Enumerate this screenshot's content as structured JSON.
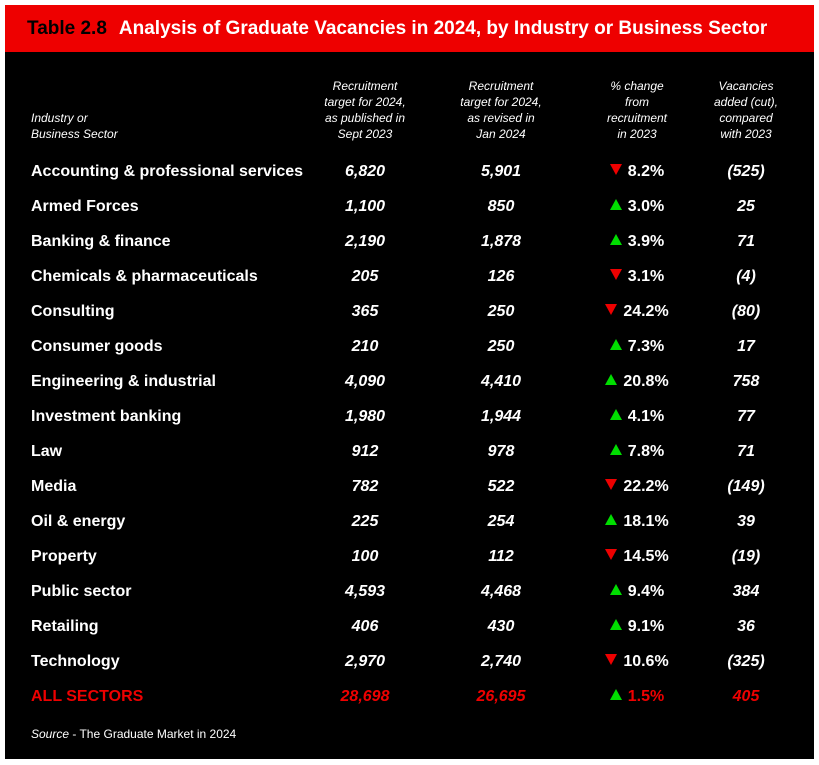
{
  "title": {
    "number": "Table 2.8",
    "text": "Analysis of Graduate Vacancies in 2024, by Industry or Business Sector"
  },
  "headers": {
    "sector": "Industry or\nBusiness Sector",
    "published": "Recruitment\ntarget for 2024,\nas published in\nSept 2023",
    "revised": "Recruitment\ntarget for 2024,\nas revised in\nJan 2024",
    "change": "% change\nfrom\nrecruitment\nin 2023",
    "added": "Vacancies\nadded (cut),\ncompared\nwith 2023"
  },
  "rows": [
    {
      "sector": "Accounting & professional services",
      "published": "6,820",
      "revised": "5,901",
      "direction": "down",
      "change": "8.2%",
      "added": "(525)"
    },
    {
      "sector": "Armed Forces",
      "published": "1,100",
      "revised": "850",
      "direction": "up",
      "change": "3.0%",
      "added": "25"
    },
    {
      "sector": "Banking & finance",
      "published": "2,190",
      "revised": "1,878",
      "direction": "up",
      "change": "3.9%",
      "added": "71"
    },
    {
      "sector": "Chemicals & pharmaceuticals",
      "published": "205",
      "revised": "126",
      "direction": "down",
      "change": "3.1%",
      "added": "(4)"
    },
    {
      "sector": "Consulting",
      "published": "365",
      "revised": "250",
      "direction": "down",
      "change": "24.2%",
      "added": "(80)"
    },
    {
      "sector": "Consumer goods",
      "published": "210",
      "revised": "250",
      "direction": "up",
      "change": "7.3%",
      "added": "17"
    },
    {
      "sector": "Engineering & industrial",
      "published": "4,090",
      "revised": "4,410",
      "direction": "up",
      "change": "20.8%",
      "added": "758"
    },
    {
      "sector": "Investment banking",
      "published": "1,980",
      "revised": "1,944",
      "direction": "up",
      "change": "4.1%",
      "added": "77"
    },
    {
      "sector": "Law",
      "published": "912",
      "revised": "978",
      "direction": "up",
      "change": "7.8%",
      "added": "71"
    },
    {
      "sector": "Media",
      "published": "782",
      "revised": "522",
      "direction": "down",
      "change": "22.2%",
      "added": "(149)"
    },
    {
      "sector": "Oil & energy",
      "published": "225",
      "revised": "254",
      "direction": "up",
      "change": "18.1%",
      "added": "39"
    },
    {
      "sector": "Property",
      "published": "100",
      "revised": "112",
      "direction": "down",
      "change": "14.5%",
      "added": "(19)"
    },
    {
      "sector": "Public sector",
      "published": "4,593",
      "revised": "4,468",
      "direction": "up",
      "change": "9.4%",
      "added": "384"
    },
    {
      "sector": "Retailing",
      "published": "406",
      "revised": "430",
      "direction": "up",
      "change": "9.1%",
      "added": "36"
    },
    {
      "sector": "Technology",
      "published": "2,970",
      "revised": "2,740",
      "direction": "down",
      "change": "10.6%",
      "added": "(325)"
    }
  ],
  "total": {
    "sector": "ALL SECTORS",
    "published": "28,698",
    "revised": "26,695",
    "direction": "up",
    "change": "1.5%",
    "added": "405"
  },
  "source": {
    "label": "Source",
    "text": " - The Graduate Market in 2024"
  },
  "colors": {
    "accent": "#ee0000",
    "up": "#00dd00",
    "down": "#ee0000",
    "background": "#000000"
  }
}
